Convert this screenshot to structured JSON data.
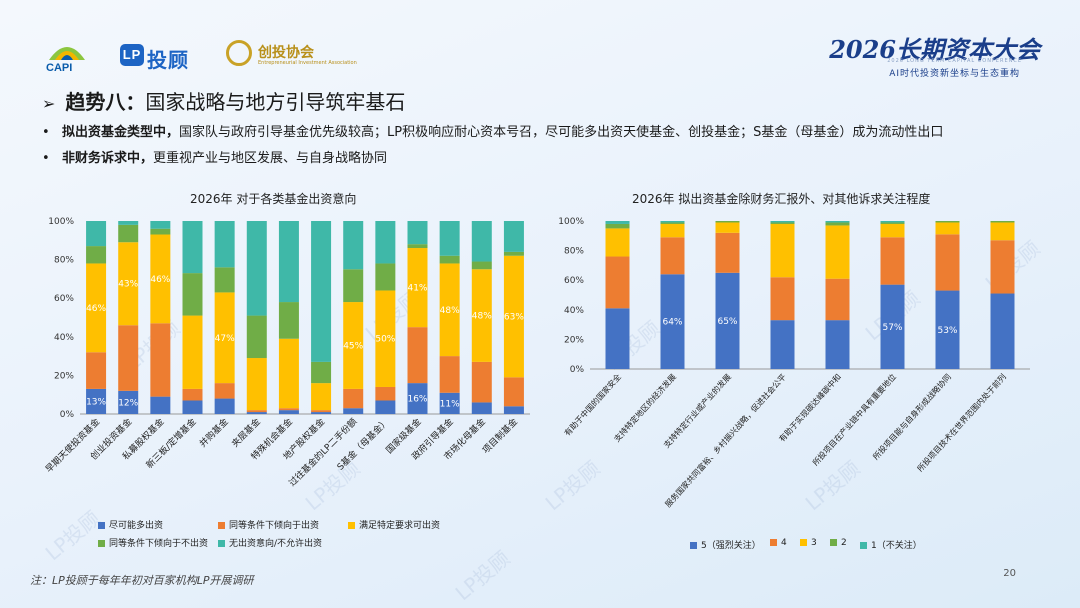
{
  "header": {
    "capi": "CAPI",
    "tg_lp": "LP",
    "tg_name": "投顾",
    "ct_name": "创投协会",
    "ct_sub": "Entrepreneurial Investment Association",
    "conf_title": "2026长期资本大会",
    "conf_en": "2026 LONG TERM CAPITAL CONFERENCE",
    "conf_sub": "AI时代投资新坐标与生态重构"
  },
  "section": {
    "arrow": "➢",
    "title_bold": "趋势八：",
    "title": "国家战略与地方引导筑牢基石"
  },
  "bullets": [
    {
      "bold": "拟出资基金类型中，",
      "text": "国家队与政府引导基金优先级较高；LP积极响应耐心资本号召，尽可能多出资天使基金、创投基金；S基金（母基金）成为流动性出口"
    },
    {
      "bold": "非财务诉求中，",
      "text": "更重视产业与地区发展、与自身战略协同"
    }
  ],
  "colors": {
    "s1": "#4472c4",
    "s2": "#ed7d31",
    "s3": "#ffc000",
    "s4": "#70ad47",
    "s5": "#3fb8a8"
  },
  "chart_data": [
    {
      "type": "bar",
      "stacked": true,
      "title": "2026年 对于各类基金出资意向",
      "categories": [
        "早期天使投资基金",
        "创业投资基金",
        "私募股权基金",
        "新三板/定增基金",
        "并购基金",
        "夹层基金",
        "特殊机会基金",
        "地产股权基金",
        "过往基金的LP二手份额",
        "S基金（母基金）",
        "国家级基金",
        "政府引导基金",
        "市场化母基金",
        "项目制基金"
      ],
      "yticks": [
        "0%",
        "20%",
        "40%",
        "60%",
        "80%",
        "100%"
      ],
      "ylim": [
        0,
        100
      ],
      "series": [
        {
          "name": "尽可能多出资",
          "values": [
            13,
            12,
            9,
            7,
            8,
            1,
            2,
            1,
            3,
            7,
            16,
            11,
            6,
            4
          ]
        },
        {
          "name": "同等条件下倾向于出资",
          "values": [
            19,
            34,
            38,
            6,
            8,
            1,
            1,
            1,
            10,
            7,
            29,
            19,
            21,
            15
          ]
        },
        {
          "name": "满足特定要求可出资",
          "values": [
            46,
            43,
            46,
            38,
            47,
            27,
            36,
            14,
            45,
            50,
            41,
            48,
            48,
            63
          ]
        },
        {
          "name": "同等条件下倾向于不出资",
          "values": [
            9,
            9,
            3,
            22,
            13,
            22,
            19,
            11,
            17,
            14,
            2,
            4,
            4,
            2
          ]
        },
        {
          "name": "无出资意向/不允许出资",
          "values": [
            13,
            2,
            4,
            27,
            24,
            49,
            42,
            73,
            25,
            22,
            12,
            18,
            21,
            16
          ]
        }
      ],
      "data_labels": [
        {
          "cat": 0,
          "series": 0,
          "text": "13%"
        },
        {
          "cat": 1,
          "series": 0,
          "text": "12%"
        },
        {
          "cat": 0,
          "series": 2,
          "text": "46%"
        },
        {
          "cat": 1,
          "series": 2,
          "text": "43%"
        },
        {
          "cat": 2,
          "series": 2,
          "text": "46%"
        },
        {
          "cat": 4,
          "series": 2,
          "text": "47%"
        },
        {
          "cat": 8,
          "series": 2,
          "text": "45%"
        },
        {
          "cat": 9,
          "series": 2,
          "text": "50%"
        },
        {
          "cat": 10,
          "series": 0,
          "text": "16%"
        },
        {
          "cat": 10,
          "series": 2,
          "text": "41%"
        },
        {
          "cat": 11,
          "series": 0,
          "text": "11%"
        },
        {
          "cat": 11,
          "series": 2,
          "text": "48%"
        },
        {
          "cat": 12,
          "series": 2,
          "text": "48%"
        },
        {
          "cat": 13,
          "series": 2,
          "text": "63%"
        }
      ]
    },
    {
      "type": "bar",
      "stacked": true,
      "title": "2026年 拟出资基金除财务汇报外、对其他诉求关注程度",
      "categories": [
        "有助于中国的国家安全",
        "支持特定地区的经济发展",
        "支持特定行业或产业的发展",
        "服务国家共同富裕、乡村振兴战略，促进社会公平",
        "有助于实现碳达峰碳中和",
        "所投项目在产业链中具有重要地位",
        "所投项目能与自身形成战略协同",
        "所投项目技术在世界范围内处于前列"
      ],
      "yticks": [
        "0%",
        "20%",
        "40%",
        "60%",
        "80%",
        "100%"
      ],
      "ylim": [
        0,
        100
      ],
      "series": [
        {
          "name": "5（强烈关注）",
          "values": [
            41,
            64,
            65,
            33,
            33,
            57,
            53,
            51
          ]
        },
        {
          "name": "4",
          "values": [
            35,
            25,
            27,
            29,
            28,
            32,
            38,
            36
          ]
        },
        {
          "name": "3",
          "values": [
            19,
            9,
            7,
            36,
            36,
            9,
            8,
            12
          ]
        },
        {
          "name": "2",
          "values": [
            3,
            1,
            1,
            1,
            2,
            1,
            1,
            1
          ]
        },
        {
          "name": "1（不关注）",
          "values": [
            2,
            1,
            0,
            1,
            1,
            1,
            0,
            0
          ]
        }
      ],
      "data_labels": [
        {
          "cat": 1,
          "series": 0,
          "text": "64%"
        },
        {
          "cat": 2,
          "series": 0,
          "text": "65%"
        },
        {
          "cat": 5,
          "series": 0,
          "text": "57%"
        },
        {
          "cat": 6,
          "series": 0,
          "text": "53%"
        }
      ]
    }
  ],
  "watermark": "LP投顾",
  "note": "注：LP投顾于每年年初对百家机构LP开展调研",
  "page_number": "20"
}
